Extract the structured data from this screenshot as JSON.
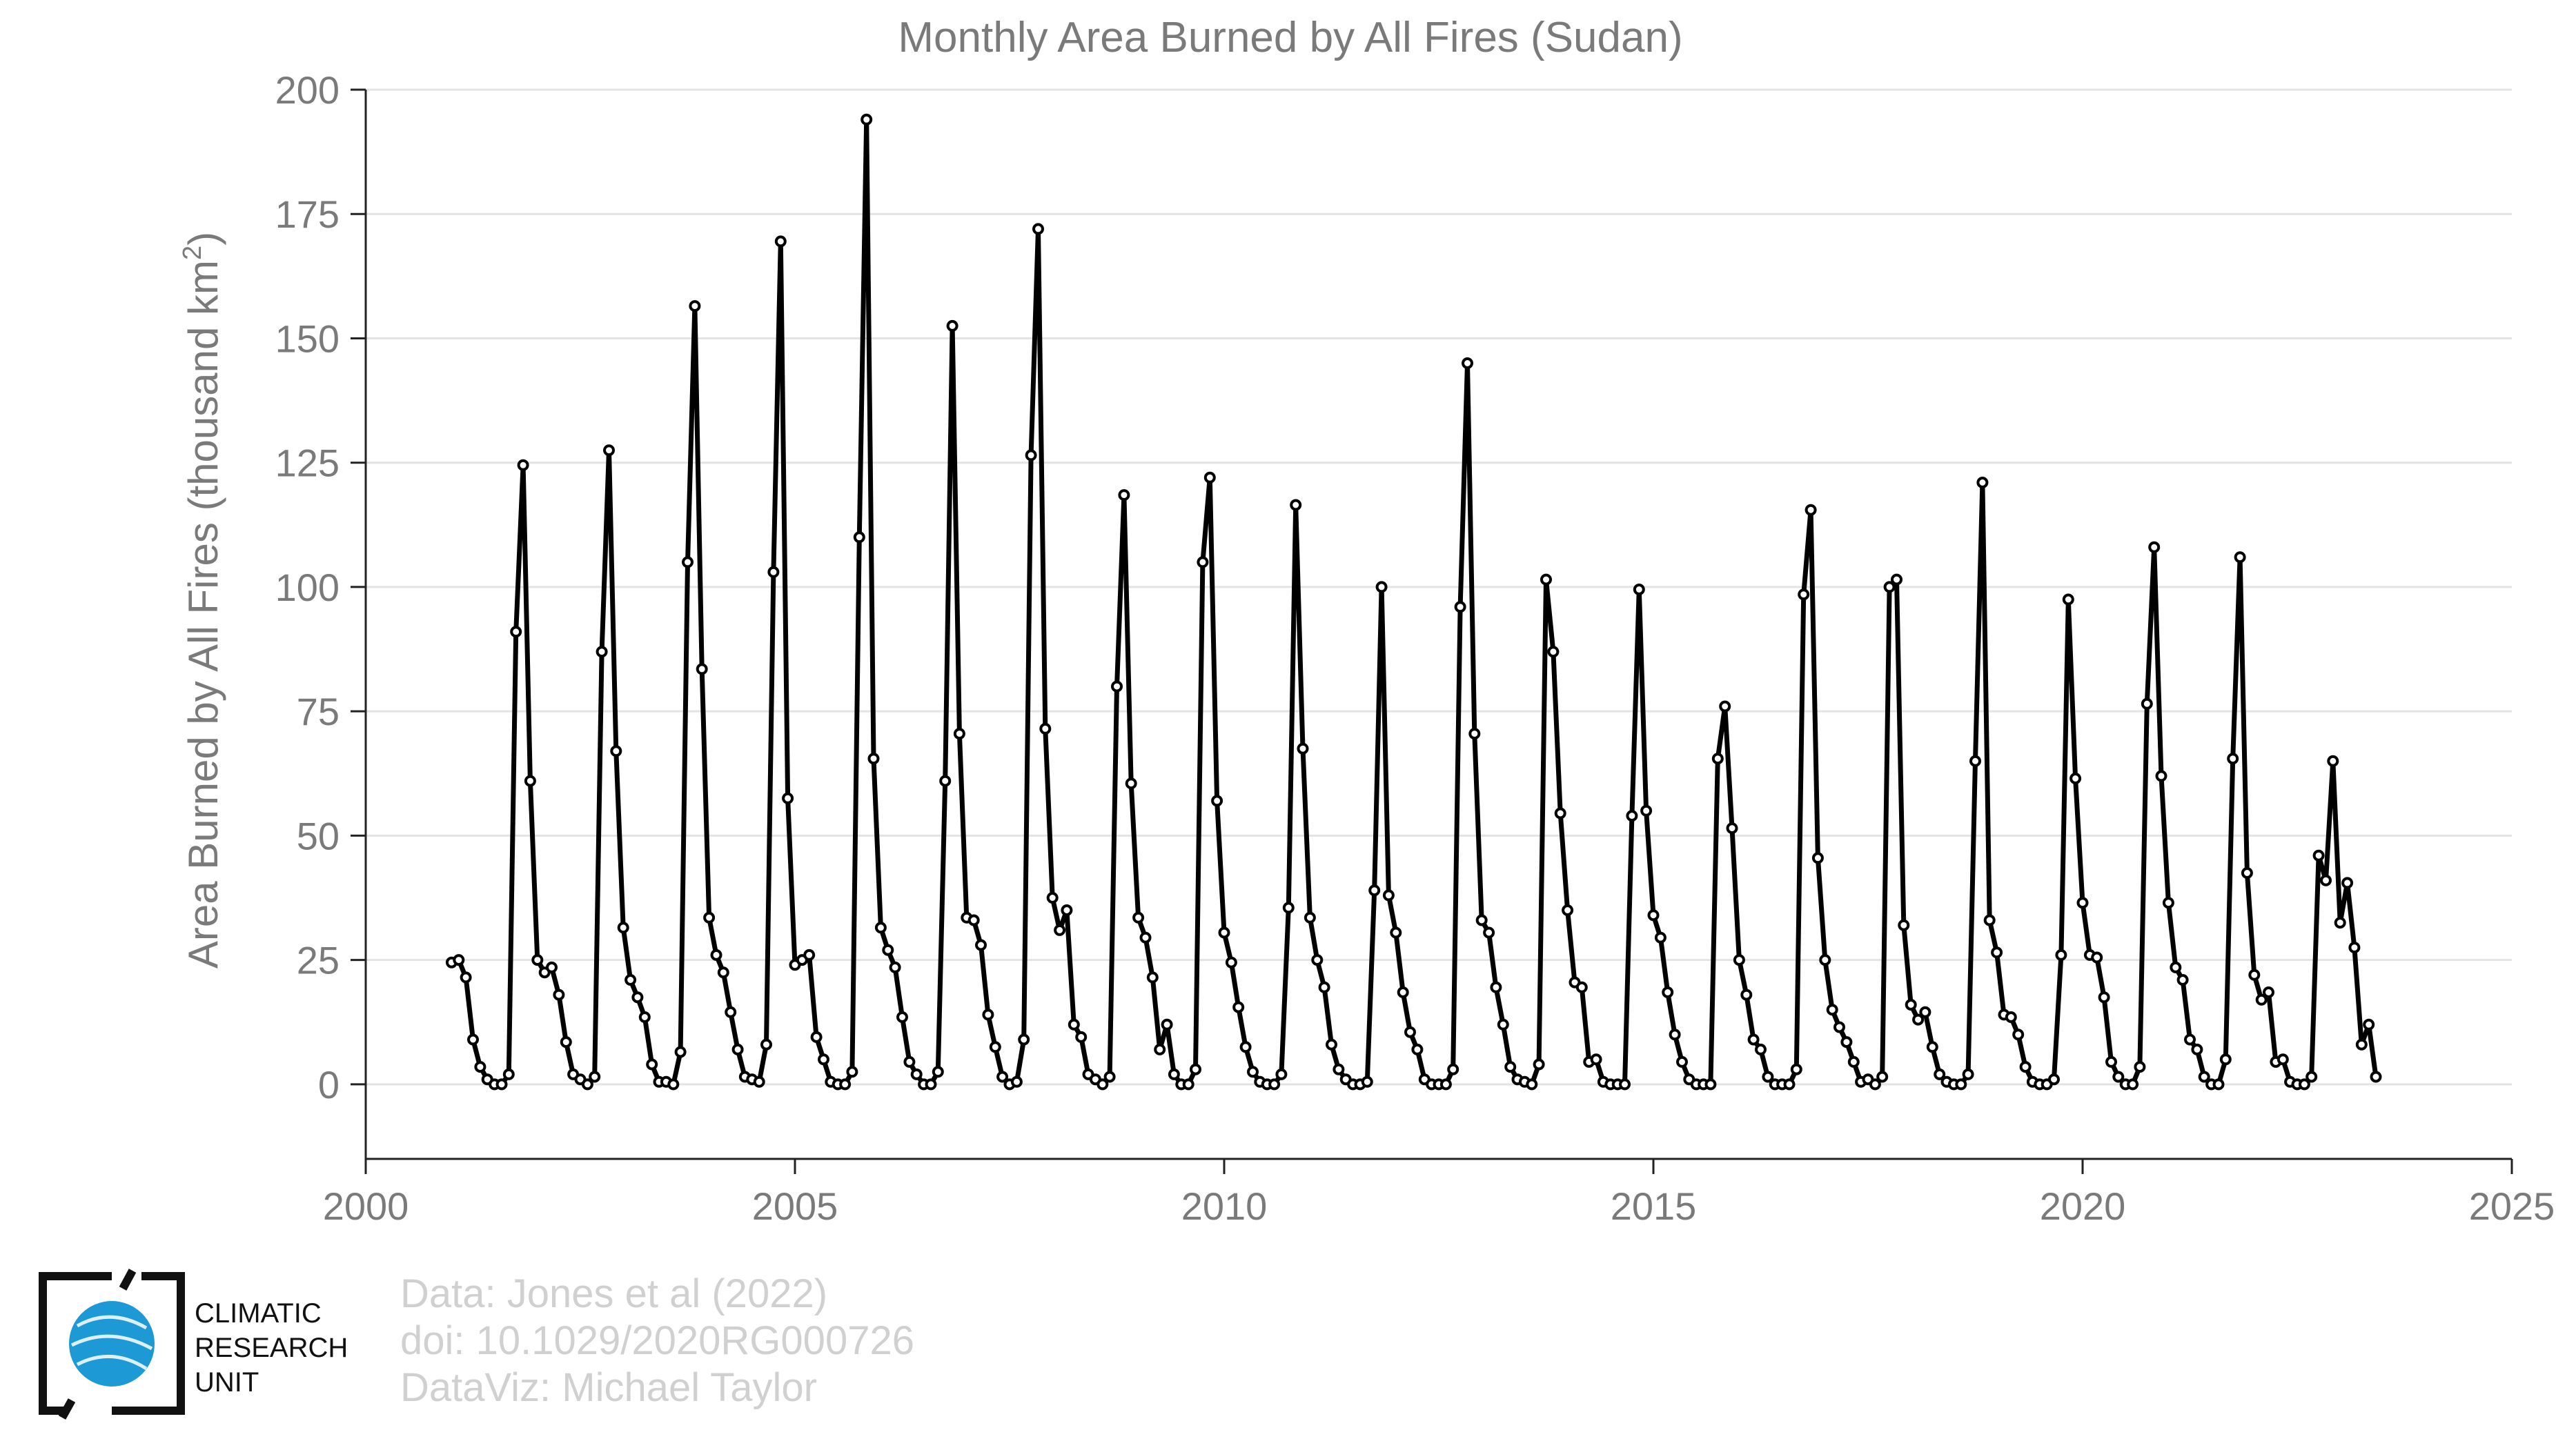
{
  "chart_data": {
    "type": "line",
    "title": "Monthly Area Burned by All Fires (Sudan)",
    "ylabel": "Area Burned by All Fires (thousand km",
    "ylabel_superscript": "2",
    "ylabel_close": ")",
    "xlabel": "",
    "xlim": [
      2000,
      2025
    ],
    "ylim": [
      -15,
      200
    ],
    "x_ticks": [
      "2000",
      "2005",
      "2010",
      "2015",
      "2020",
      "2025"
    ],
    "y_ticks": [
      "0",
      "25",
      "50",
      "75",
      "100",
      "125",
      "150",
      "175",
      "200"
    ],
    "grid": true,
    "line_color": "#000000",
    "start_year": 2001,
    "series": [
      {
        "values": [
          24.5,
          25,
          21.5,
          9,
          3.5,
          1,
          0,
          0,
          2,
          91,
          124.5,
          61,
          25,
          22.5,
          23.5,
          18,
          8.5,
          2,
          1,
          0,
          1.5,
          87,
          127.5,
          67,
          31.5,
          21,
          17.5,
          13.5,
          4,
          0.5,
          0.5,
          0,
          6.5,
          105,
          156.5,
          83.5,
          33.5,
          26,
          22.5,
          14.5,
          7,
          1.5,
          1,
          0.5,
          8,
          103,
          169.5,
          57.5,
          24,
          25,
          26,
          9.5,
          5,
          0.5,
          0,
          0,
          2.5,
          110,
          194,
          65.5,
          31.5,
          27,
          23.5,
          13.5,
          4.5,
          2,
          0,
          0,
          2.5,
          61,
          152.5,
          70.5,
          33.5,
          33,
          28,
          14,
          7.5,
          1.5,
          0,
          0.5,
          9,
          126.5,
          172,
          71.5,
          37.5,
          31,
          35,
          12,
          9.5,
          2,
          1,
          0,
          1.5,
          80,
          118.5,
          60.5,
          33.5,
          29.5,
          21.5,
          7,
          12,
          2,
          0,
          0,
          3,
          105,
          122,
          57,
          30.5,
          24.5,
          15.5,
          7.5,
          2.5,
          0.5,
          0,
          0,
          2,
          35.5,
          116.5,
          67.5,
          33.5,
          25,
          19.5,
          8,
          3,
          1,
          0,
          0,
          0.5,
          39,
          100,
          38,
          30.5,
          18.5,
          10.5,
          7,
          1,
          0,
          0,
          0,
          3,
          96,
          145,
          70.5,
          33,
          30.5,
          19.5,
          12,
          3.5,
          1,
          0.5,
          0,
          4,
          101.5,
          87,
          54.5,
          35,
          20.5,
          19.5,
          4.5,
          5,
          0.5,
          0,
          0,
          0,
          54,
          99.5,
          55,
          34,
          29.5,
          18.5,
          10,
          4.5,
          1,
          0,
          0,
          0,
          65.5,
          76,
          51.5,
          25,
          18,
          9,
          7,
          1.5,
          0,
          0,
          0,
          3,
          98.5,
          115.5,
          45.5,
          25,
          15,
          11.5,
          8.5,
          4.5,
          0.5,
          1,
          0,
          1.5,
          100,
          101.5,
          32,
          16,
          13,
          14.5,
          7.5,
          2,
          0.5,
          0,
          0,
          2,
          65,
          121,
          33,
          26.5,
          14,
          13.5,
          10,
          3.5,
          0.5,
          0,
          0,
          1,
          26,
          97.5,
          61.5,
          36.5,
          26,
          25.5,
          17.5,
          4.5,
          1.5,
          0,
          0,
          3.5,
          76.5,
          108,
          62,
          36.5,
          23.5,
          21,
          9,
          7,
          1.5,
          0,
          0,
          5,
          65.5,
          106,
          42.5,
          22,
          17,
          18.5,
          4.5,
          5,
          0.5,
          0,
          0,
          1.5,
          46,
          41,
          65,
          32.5,
          40.5,
          27.5,
          8,
          12,
          1.5
        ]
      }
    ]
  },
  "credits": {
    "line1": "Data: Jones et al (2022)",
    "line2": "doi: 10.1029/2020RG000726",
    "line3": "DataViz: Michael Taylor"
  },
  "logo": {
    "line1": "CLIMATIC",
    "line2": "RESEARCH",
    "line3": "UNIT",
    "globe_color": "#1d9ad6"
  }
}
